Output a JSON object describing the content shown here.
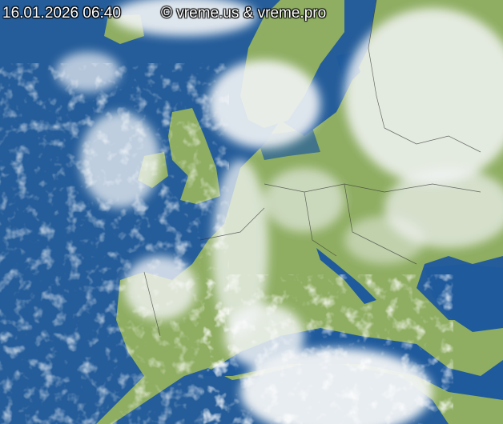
{
  "overlay": {
    "timestamp": "16.01.2026 06:40",
    "copyright": "© vreme.us & vreme.pro"
  },
  "map": {
    "type": "satellite infrared composite",
    "region": "Europe",
    "colors": {
      "sea": "#1b4f8c",
      "land": "#8fae62",
      "cloud": "#f2f4f6",
      "borders": "#333333"
    }
  }
}
